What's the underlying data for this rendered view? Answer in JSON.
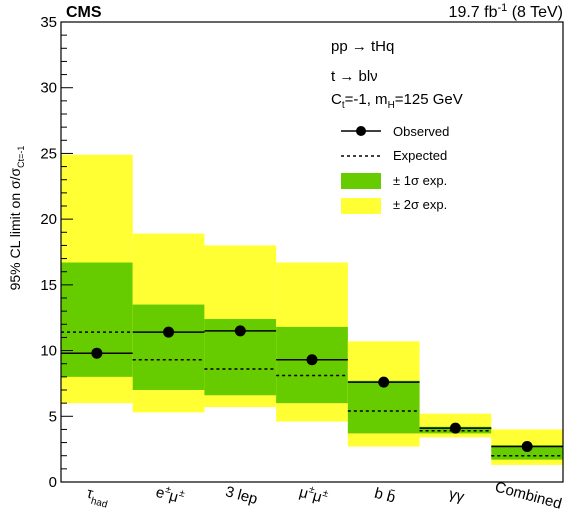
{
  "chart_data": {
    "type": "bar",
    "experiment": "CMS",
    "luminosity": "19.7 fb",
    "luminosity_exp": "-1",
    "energy": " (8 TeV)",
    "ylabel": "95% CL limit on σ/σ",
    "ylabel_sub": "Ct=-1",
    "ylim": [
      0,
      35
    ],
    "yticks": [
      0,
      5,
      10,
      15,
      20,
      25,
      30,
      35
    ],
    "categories": [
      {
        "main": "τ",
        "sub": "had",
        "sup": ""
      },
      {
        "main": "e",
        "sub": "",
        "sup": "±",
        "main2": "μ",
        "sup2": "±"
      },
      {
        "main": "3 lep",
        "sub": "",
        "sup": ""
      },
      {
        "main": "μ",
        "sub": "",
        "sup": "±",
        "main2": "μ",
        "sup2": "±"
      },
      {
        "main": "b b̄",
        "sub": "",
        "sup": ""
      },
      {
        "main": "γγ",
        "sub": "",
        "sup": ""
      },
      {
        "main": "Combined",
        "sub": "",
        "sup": ""
      }
    ],
    "observed": [
      9.8,
      11.4,
      11.5,
      9.3,
      7.6,
      4.1,
      2.7
    ],
    "expected": [
      11.4,
      9.3,
      8.6,
      8.1,
      5.4,
      3.9,
      2.0
    ],
    "band_1sigma": [
      [
        8.0,
        16.7
      ],
      [
        7.0,
        13.5
      ],
      [
        6.6,
        12.4
      ],
      [
        6.0,
        11.8
      ],
      [
        3.7,
        7.7
      ],
      [
        3.7,
        4.2
      ],
      [
        1.7,
        2.8
      ]
    ],
    "band_2sigma": [
      [
        6.0,
        24.9
      ],
      [
        5.3,
        18.9
      ],
      [
        5.7,
        18.0
      ],
      [
        4.6,
        16.7
      ],
      [
        2.7,
        10.7
      ],
      [
        3.4,
        5.2
      ],
      [
        1.3,
        4.0
      ]
    ],
    "legend_title_lines": [
      "pp → tHq",
      "t → blν"
    ],
    "legend_params": {
      "ct": "C",
      "ct_sub": "t",
      "ct_val": "=-1, m",
      "mh_sub": "H",
      "mh_val": "=125 GeV"
    },
    "legend_entries": [
      "Observed",
      "Expected",
      "± 1σ exp.",
      "± 2σ exp."
    ],
    "colors": {
      "band_1sigma": "#66cc00",
      "band_2sigma": "#ffff33",
      "observed": "#000000"
    },
    "legend_placement": "top-right",
    "grid": false
  }
}
